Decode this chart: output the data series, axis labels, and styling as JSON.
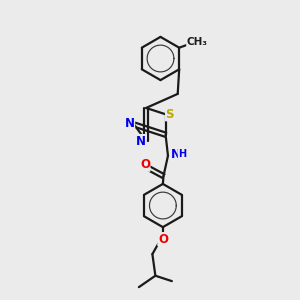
{
  "background_color": "#ebebeb",
  "line_color": "#1a1a1a",
  "bond_width": 1.6,
  "atom_colors": {
    "N": "#0000ee",
    "O": "#ee0000",
    "S": "#bbaa00",
    "C": "#1a1a1a",
    "H": "#555555"
  },
  "font_size": 8.5,
  "fig_width": 3.0,
  "fig_height": 3.0,
  "dpi": 100
}
